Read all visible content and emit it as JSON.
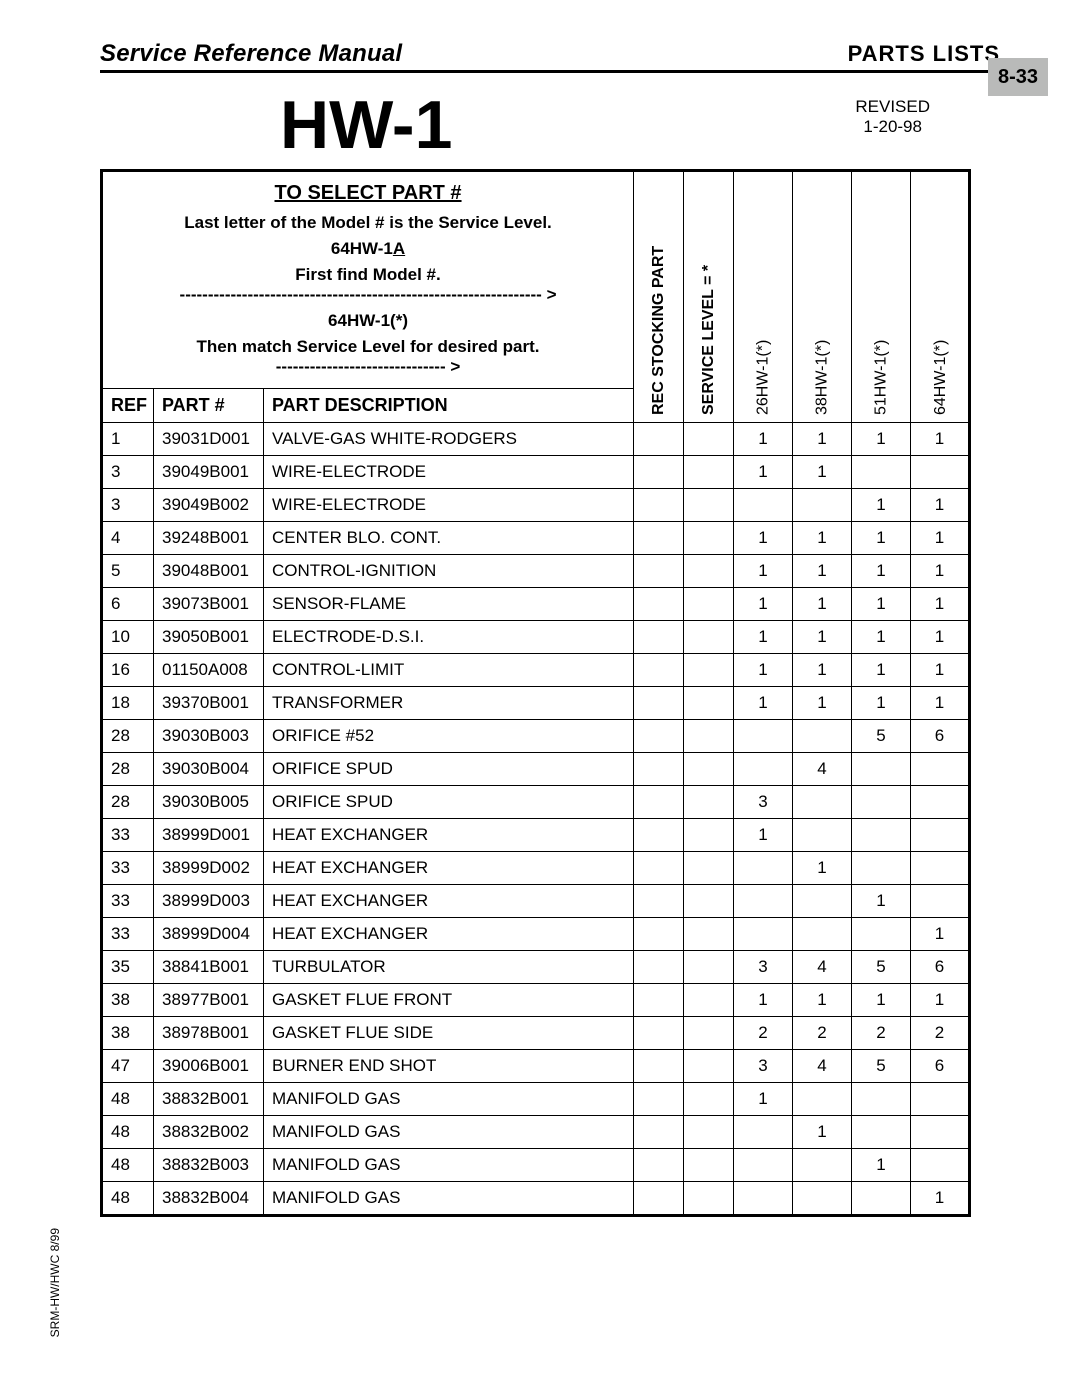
{
  "header": {
    "left": "Service Reference Manual",
    "right": "PARTS LISTS",
    "page_tab": "8-33"
  },
  "title": "HW-1",
  "revised": {
    "label": "REVISED",
    "date": "1-20-98"
  },
  "select_box": {
    "heading": "TO SELECT PART #",
    "line1": "Last letter of the Model # is the Service Level.",
    "example_model_prefix": "64HW-1",
    "example_model_suffix": "A",
    "line2_pre": "First find Model #.",
    "line2_dash": " ---------------------------------------------------------------- >",
    "example2": "64HW-1(*)",
    "line3_pre": "Then match Service Level for desired part.",
    "line3_dash": " ------------------------------ >"
  },
  "column_headers": {
    "ref": "REF",
    "part": "PART #",
    "desc": "PART DESCRIPTION",
    "rsp": "REC STOCKING PART",
    "sl": "SERVICE LEVEL = *",
    "models": [
      "26HW-1(*)",
      "38HW-1(*)",
      "51HW-1(*)",
      "64HW-1(*)"
    ]
  },
  "rows": [
    {
      "ref": "1",
      "part": "39031D001",
      "desc": "VALVE-GAS WHITE-RODGERS",
      "m": [
        "1",
        "1",
        "1",
        "1"
      ]
    },
    {
      "ref": "3",
      "part": "39049B001",
      "desc": "WIRE-ELECTRODE",
      "m": [
        "1",
        "1",
        "",
        ""
      ]
    },
    {
      "ref": "3",
      "part": "39049B002",
      "desc": "WIRE-ELECTRODE",
      "m": [
        "",
        "",
        "1",
        "1"
      ]
    },
    {
      "ref": "4",
      "part": "39248B001",
      "desc": "CENTER BLO. CONT.",
      "m": [
        "1",
        "1",
        "1",
        "1"
      ]
    },
    {
      "ref": "5",
      "part": "39048B001",
      "desc": "CONTROL-IGNITION",
      "m": [
        "1",
        "1",
        "1",
        "1"
      ]
    },
    {
      "ref": "6",
      "part": "39073B001",
      "desc": "SENSOR-FLAME",
      "m": [
        "1",
        "1",
        "1",
        "1"
      ]
    },
    {
      "ref": "10",
      "part": "39050B001",
      "desc": "ELECTRODE-D.S.I.",
      "m": [
        "1",
        "1",
        "1",
        "1"
      ]
    },
    {
      "ref": "16",
      "part": "01150A008",
      "desc": "CONTROL-LIMIT",
      "m": [
        "1",
        "1",
        "1",
        "1"
      ]
    },
    {
      "ref": "18",
      "part": "39370B001",
      "desc": "TRANSFORMER",
      "m": [
        "1",
        "1",
        "1",
        "1"
      ]
    },
    {
      "ref": "28",
      "part": "39030B003",
      "desc": "ORIFICE #52",
      "m": [
        "",
        "",
        "5",
        "6"
      ]
    },
    {
      "ref": "28",
      "part": "39030B004",
      "desc": "ORIFICE SPUD",
      "m": [
        "",
        "4",
        "",
        ""
      ]
    },
    {
      "ref": "28",
      "part": "39030B005",
      "desc": "ORIFICE SPUD",
      "m": [
        "3",
        "",
        "",
        ""
      ]
    },
    {
      "ref": "33",
      "part": "38999D001",
      "desc": "HEAT EXCHANGER",
      "m": [
        "1",
        "",
        "",
        ""
      ]
    },
    {
      "ref": "33",
      "part": "38999D002",
      "desc": "HEAT EXCHANGER",
      "m": [
        "",
        "1",
        "",
        ""
      ]
    },
    {
      "ref": "33",
      "part": "38999D003",
      "desc": "HEAT EXCHANGER",
      "m": [
        "",
        "",
        "1",
        ""
      ]
    },
    {
      "ref": "33",
      "part": "38999D004",
      "desc": "HEAT EXCHANGER",
      "m": [
        "",
        "",
        "",
        "1"
      ]
    },
    {
      "ref": "35",
      "part": "38841B001",
      "desc": "TURBULATOR",
      "m": [
        "3",
        "4",
        "5",
        "6"
      ]
    },
    {
      "ref": "38",
      "part": "38977B001",
      "desc": "GASKET FLUE FRONT",
      "m": [
        "1",
        "1",
        "1",
        "1"
      ]
    },
    {
      "ref": "38",
      "part": "38978B001",
      "desc": "GASKET FLUE SIDE",
      "m": [
        "2",
        "2",
        "2",
        "2"
      ]
    },
    {
      "ref": "47",
      "part": "39006B001",
      "desc": "BURNER END SHOT",
      "m": [
        "3",
        "4",
        "5",
        "6"
      ]
    },
    {
      "ref": "48",
      "part": "38832B001",
      "desc": "MANIFOLD GAS",
      "m": [
        "1",
        "",
        "",
        ""
      ]
    },
    {
      "ref": "48",
      "part": "38832B002",
      "desc": "MANIFOLD GAS",
      "m": [
        "",
        "1",
        "",
        ""
      ]
    },
    {
      "ref": "48",
      "part": "38832B003",
      "desc": "MANIFOLD GAS",
      "m": [
        "",
        "",
        "1",
        ""
      ]
    },
    {
      "ref": "48",
      "part": "38832B004",
      "desc": "MANIFOLD GAS",
      "m": [
        "",
        "",
        "",
        "1"
      ]
    }
  ],
  "footer_side": "SRM-HW/HWC 8/99"
}
